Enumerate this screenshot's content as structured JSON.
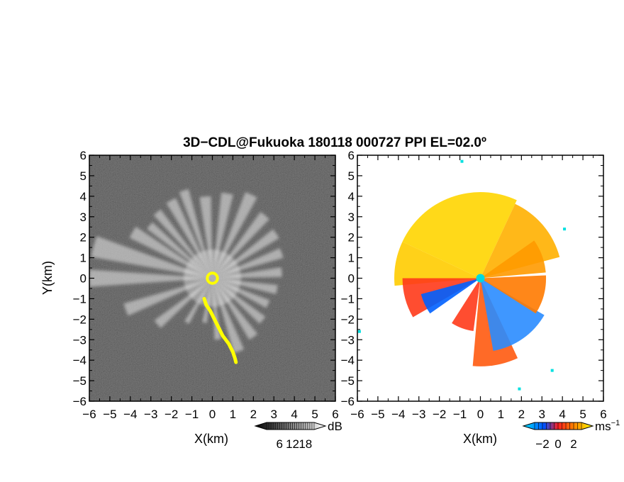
{
  "title": "3D−CDL@Fukuoka 180118 000727 PPI EL=02.0º",
  "chart_data": [
    {
      "type": "heatmap",
      "panel": "left",
      "quantity": "backscatter intensity",
      "xlabel": "X(km)",
      "ylabel": "Y(km)",
      "xlim": [
        -6,
        6
      ],
      "ylim": [
        -6,
        6
      ],
      "xticks": [
        -6,
        -5,
        -4,
        -3,
        -2,
        -1,
        0,
        1,
        2,
        3,
        4,
        5,
        6
      ],
      "yticks": [
        -6,
        -5,
        -4,
        -3,
        -2,
        -1,
        0,
        1,
        2,
        3,
        4,
        5,
        6
      ],
      "colorbar": {
        "unit": "dB",
        "ticks": [
          6,
          12,
          18
        ],
        "range": [
          0,
          22
        ],
        "colormap": [
          "#000000",
          "#ffffff"
        ]
      },
      "background_color": "#2a2a2a",
      "rays": [
        {
          "angle_deg": 165,
          "width_deg": 10,
          "range_km": 6.0
        },
        {
          "angle_deg": 150,
          "width_deg": 8,
          "range_km": 4.5
        },
        {
          "angle_deg": 140,
          "width_deg": 6,
          "range_km": 4.0
        },
        {
          "angle_deg": 130,
          "width_deg": 6,
          "range_km": 4.2
        },
        {
          "angle_deg": 118,
          "width_deg": 7,
          "range_km": 4.3
        },
        {
          "angle_deg": 108,
          "width_deg": 6,
          "range_km": 4.5
        },
        {
          "angle_deg": 95,
          "width_deg": 8,
          "range_km": 4.0
        },
        {
          "angle_deg": 80,
          "width_deg": 8,
          "range_km": 4.2
        },
        {
          "angle_deg": 65,
          "width_deg": 8,
          "range_km": 4.5
        },
        {
          "angle_deg": 50,
          "width_deg": 8,
          "range_km": 4.0
        },
        {
          "angle_deg": 35,
          "width_deg": 8,
          "range_km": 3.8
        },
        {
          "angle_deg": 20,
          "width_deg": 8,
          "range_km": 3.6
        },
        {
          "angle_deg": 5,
          "width_deg": 8,
          "range_km": 3.4
        },
        {
          "angle_deg": -10,
          "width_deg": 8,
          "range_km": 3.2
        },
        {
          "angle_deg": -25,
          "width_deg": 8,
          "range_km": 3.0
        },
        {
          "angle_deg": -40,
          "width_deg": 8,
          "range_km": 3.2
        },
        {
          "angle_deg": -55,
          "width_deg": 8,
          "range_km": 3.5
        },
        {
          "angle_deg": -70,
          "width_deg": 8,
          "range_km": 3.8
        },
        {
          "angle_deg": -85,
          "width_deg": 6,
          "range_km": 3.0
        },
        {
          "angle_deg": -100,
          "width_deg": 6,
          "range_km": 2.2
        },
        {
          "angle_deg": -120,
          "width_deg": 6,
          "range_km": 2.5
        },
        {
          "angle_deg": -140,
          "width_deg": 8,
          "range_km": 3.5
        },
        {
          "angle_deg": -160,
          "width_deg": 8,
          "range_km": 4.5
        },
        {
          "angle_deg": 180,
          "width_deg": 8,
          "range_km": 6.0
        }
      ],
      "overlay_color": "#ffff00",
      "overlay_points": [
        [
          -0.4,
          -1.0
        ],
        [
          -0.3,
          -1.3
        ],
        [
          -0.1,
          -1.6
        ],
        [
          0.1,
          -2.0
        ],
        [
          0.3,
          -2.4
        ],
        [
          0.5,
          -2.8
        ],
        [
          0.8,
          -3.2
        ],
        [
          1.0,
          -3.6
        ],
        [
          1.1,
          -3.9
        ],
        [
          1.15,
          -4.1
        ]
      ],
      "overlay_ring": {
        "center": [
          0,
          0
        ],
        "radius_km": 0.25
      }
    },
    {
      "type": "heatmap",
      "panel": "right",
      "quantity": "radial velocity",
      "xlabel": "X(km)",
      "xlim": [
        -6,
        6
      ],
      "ylim": [
        -6,
        6
      ],
      "xticks": [
        -6,
        -5,
        -4,
        -3,
        -2,
        -1,
        0,
        1,
        2,
        3,
        4,
        5,
        6
      ],
      "yticks": [
        -6,
        -5,
        -4,
        -3,
        -2,
        -1,
        0,
        1,
        2,
        3,
        4,
        5,
        6
      ],
      "colorbar": {
        "unit": "ms",
        "unit_exponent": "−1",
        "ticks": [
          -2,
          0,
          2
        ],
        "range": [
          -3,
          3
        ],
        "colormap": [
          "#00e5ff",
          "#0050ff",
          "#ff2020",
          "#ff8000",
          "#ffff00"
        ]
      },
      "sectors": [
        {
          "angle_deg": 110,
          "span_deg": 90,
          "range_km": 4.2,
          "color": "#ffd500"
        },
        {
          "angle_deg": 40,
          "span_deg": 50,
          "range_km": 4.0,
          "color": "#ffb000"
        },
        {
          "angle_deg": 170,
          "span_deg": 30,
          "range_km": 4.2,
          "color": "#ffcc00"
        },
        {
          "angle_deg": 195,
          "span_deg": 30,
          "range_km": 3.8,
          "color": "#ff3a1a"
        },
        {
          "angle_deg": 205,
          "span_deg": 20,
          "range_km": 3.0,
          "color": "#0060ff"
        },
        {
          "angle_deg": 250,
          "span_deg": 25,
          "range_km": 2.6,
          "color": "#ff3a1a"
        },
        {
          "angle_deg": 280,
          "span_deg": 30,
          "range_km": 4.3,
          "color": "#ff5a10"
        },
        {
          "angle_deg": 305,
          "span_deg": 50,
          "range_km": 3.6,
          "color": "#2a8cff"
        },
        {
          "angle_deg": 345,
          "span_deg": 35,
          "range_km": 3.2,
          "color": "#ff7a00"
        },
        {
          "angle_deg": 20,
          "span_deg": 30,
          "range_km": 3.2,
          "color": "#ff9a00"
        }
      ],
      "center_marker": {
        "x": 0,
        "y": 0,
        "color": "#00d8e0"
      },
      "noise_points": [
        [
          -0.9,
          5.7
        ],
        [
          -5.9,
          -2.6
        ],
        [
          3.5,
          -4.5
        ],
        [
          1.9,
          -5.4
        ],
        [
          4.1,
          2.4
        ]
      ]
    }
  ]
}
